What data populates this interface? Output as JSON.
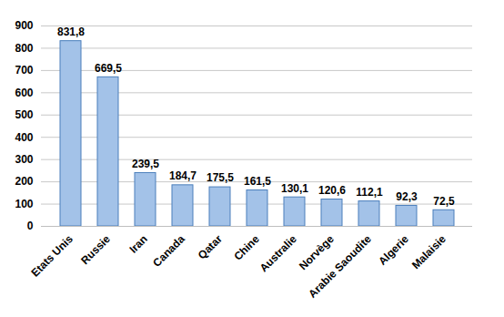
{
  "chart_data": {
    "type": "bar",
    "categories": [
      "Etats Unis",
      "Russie",
      "Iran",
      "Canada",
      "Qatar",
      "Chine",
      "Australie",
      "Norvège",
      "Arabie Saoudite",
      "Algerie",
      "Malaisie"
    ],
    "values": [
      831.8,
      669.5,
      239.5,
      184.7,
      175.5,
      161.5,
      130.1,
      120.6,
      112.1,
      92.3,
      72.5
    ],
    "value_labels": [
      "831,8",
      "669,5",
      "239,5",
      "184,7",
      "175,5",
      "161,5",
      "130,1",
      "120,6",
      "112,1",
      "92,3",
      "72,5"
    ],
    "color": "#a3c2e8",
    "ylim": [
      0,
      900
    ],
    "yticks": [
      0,
      100,
      200,
      300,
      400,
      500,
      600,
      700,
      800,
      900
    ],
    "grid": true,
    "data_labels": true
  }
}
